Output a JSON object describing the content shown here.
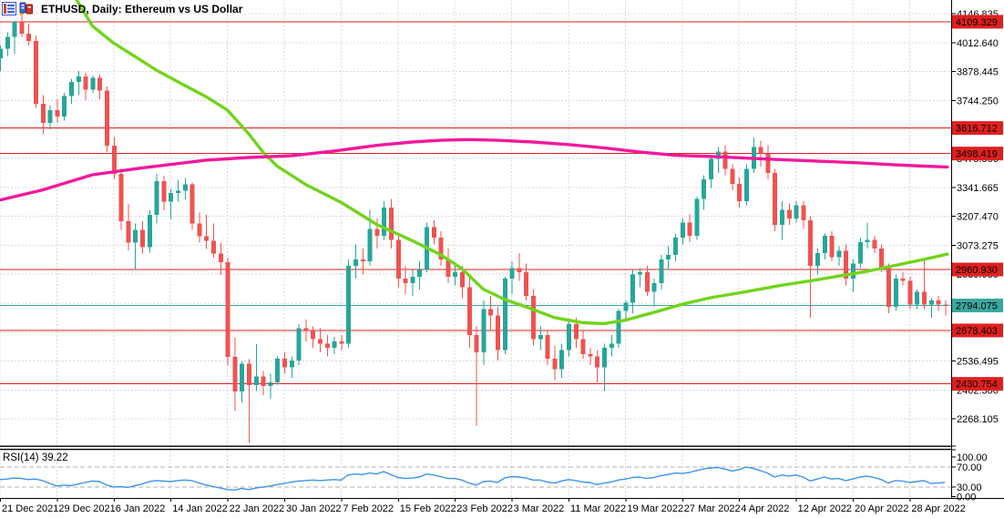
{
  "window": {
    "title": "ETHUSD, Daily: Ethereum vs US Dollar"
  },
  "indicator": {
    "text": "RSI(14) 39.22"
  },
  "chart_data": {
    "type": "candlestick",
    "symbol": "ETHUSD",
    "timeframe": "Daily",
    "description": "Ethereum vs US Dollar",
    "current_price": 2794.075,
    "colors": {
      "up": "#26a69a",
      "down": "#ef5350",
      "grid": "#d9d9d9",
      "rsi_line": "#3d94ee",
      "rsi_level_dash": "#b2b2b2",
      "level_red": "#e02020",
      "current_teal": "#3aa89e",
      "ma_fast_green": "#72d41c",
      "ma_slow_magenta": "#f2199c"
    },
    "x_axis": {
      "label_step_days": 8,
      "labels": [
        "21 Dec 2021",
        "29 Dec 2021",
        "6 Jan 2022",
        "14 Jan 2022",
        "22 Jan 2022",
        "30 Jan 2022",
        "7 Feb 2022",
        "15 Feb 2022",
        "23 Feb 2022",
        "3 Mar 2022",
        "11 Mar 2022",
        "19 Mar 2022",
        "27 Mar 2022",
        "4 Apr 2022",
        "12 Apr 2022",
        "20 Apr 2022",
        "28 Apr 2022"
      ]
    },
    "y_axis": {
      "ticks": [
        4146.835,
        4012.64,
        3878.445,
        3744.25,
        3610.055,
        3475.86,
        3341.665,
        3207.47,
        3073.275,
        2939.08,
        2804.885,
        2670.69,
        2536.495,
        2402.3,
        2268.105
      ]
    },
    "levels": [
      {
        "value": 4109.329,
        "color": "#e02020",
        "role": "horizontal-line"
      },
      {
        "value": 3616.712,
        "color": "#e02020",
        "role": "horizontal-line"
      },
      {
        "value": 3498.419,
        "color": "#e02020",
        "role": "horizontal-line"
      },
      {
        "value": 2960.93,
        "color": "#e02020",
        "role": "horizontal-line"
      },
      {
        "value": 2678.403,
        "color": "#e02020",
        "role": "horizontal-line"
      },
      {
        "value": 2430.754,
        "color": "#e02020",
        "role": "horizontal-line"
      },
      {
        "value": 2794.075,
        "color": "#3aa89e",
        "role": "current-price"
      }
    ],
    "ohlc": [
      [
        3940,
        4000,
        3880,
        3985
      ],
      [
        3985,
        4060,
        3950,
        4040
      ],
      [
        4040,
        4115,
        3960,
        4110
      ],
      [
        4110,
        4146.8,
        4040,
        4055
      ],
      [
        4055,
        4100,
        4000,
        4020
      ],
      [
        4020,
        4045,
        3710,
        3730
      ],
      [
        3730,
        3770,
        3590,
        3640
      ],
      [
        3640,
        3720,
        3610,
        3700
      ],
      [
        3700,
        3750,
        3640,
        3670
      ],
      [
        3670,
        3780,
        3650,
        3765
      ],
      [
        3765,
        3845,
        3730,
        3830
      ],
      [
        3830,
        3880,
        3770,
        3855
      ],
      [
        3855,
        3875,
        3745,
        3795
      ],
      [
        3795,
        3860,
        3780,
        3850
      ],
      [
        3850,
        3865,
        3750,
        3790
      ],
      [
        3790,
        3810,
        3505,
        3535
      ],
      [
        3535,
        3575,
        3380,
        3405
      ],
      [
        3405,
        3430,
        3145,
        3185
      ],
      [
        3185,
        3265,
        3050,
        3085
      ],
      [
        3085,
        3175,
        2958,
        3145
      ],
      [
        3145,
        3185,
        3035,
        3065
      ],
      [
        3065,
        3235,
        3040,
        3215
      ],
      [
        3215,
        3405,
        3175,
        3370
      ],
      [
        3370,
        3395,
        3235,
        3275
      ],
      [
        3275,
        3335,
        3195,
        3315
      ],
      [
        3315,
        3375,
        3275,
        3325
      ],
      [
        3325,
        3385,
        3285,
        3355
      ],
      [
        3355,
        3365,
        3145,
        3175
      ],
      [
        3175,
        3225,
        3085,
        3115
      ],
      [
        3115,
        3215,
        3055,
        3095
      ],
      [
        3095,
        3175,
        3015,
        3035
      ],
      [
        3035,
        3085,
        2935,
        2995
      ],
      [
        2995,
        3015,
        2515,
        2555
      ],
      [
        2555,
        2645,
        2305,
        2395
      ],
      [
        2395,
        2535,
        2345,
        2525
      ],
      [
        2525,
        2545,
        2158,
        2425
      ],
      [
        2425,
        2615,
        2398,
        2465
      ],
      [
        2465,
        2490,
        2378,
        2420
      ],
      [
        2420,
        2478,
        2362,
        2438
      ],
      [
        2438,
        2558,
        2428,
        2548
      ],
      [
        2548,
        2578,
        2478,
        2508
      ],
      [
        2508,
        2558,
        2458,
        2538
      ],
      [
        2538,
        2708,
        2518,
        2688
      ],
      [
        2688,
        2728,
        2628,
        2678
      ],
      [
        2678,
        2698,
        2598,
        2638
      ],
      [
        2638,
        2688,
        2578,
        2618
      ],
      [
        2618,
        2658,
        2558,
        2598
      ],
      [
        2598,
        2648,
        2568,
        2628
      ],
      [
        2628,
        2658,
        2588,
        2618
      ],
      [
        2618,
        3008,
        2598,
        2978
      ],
      [
        2978,
        3078,
        2918,
        3008
      ],
      [
        3008,
        3058,
        2938,
        2998
      ],
      [
        2998,
        3238,
        2978,
        3148
      ],
      [
        3148,
        3198,
        3058,
        3118
      ],
      [
        3118,
        3278,
        3098,
        3248
      ],
      [
        3248,
        3288,
        3058,
        3098
      ],
      [
        3098,
        3118,
        2878,
        2918
      ],
      [
        2918,
        2978,
        2848,
        2898
      ],
      [
        2898,
        2958,
        2838,
        2928
      ],
      [
        2928,
        2998,
        2868,
        2958
      ],
      [
        2958,
        3178,
        2948,
        3158
      ],
      [
        3158,
        3188,
        3078,
        3108
      ],
      [
        3108,
        3138,
        2978,
        3008
      ],
      [
        3008,
        3058,
        2898,
        2928
      ],
      [
        2928,
        2988,
        2888,
        2948
      ],
      [
        2948,
        2978,
        2828,
        2878
      ],
      [
        2878,
        2938,
        2598,
        2658
      ],
      [
        2658,
        2698,
        2238,
        2578
      ],
      [
        2578,
        2818,
        2518,
        2778
      ],
      [
        2778,
        2838,
        2678,
        2748
      ],
      [
        2748,
        2788,
        2538,
        2588
      ],
      [
        2588,
        2928,
        2568,
        2918
      ],
      [
        2918,
        2998,
        2848,
        2968
      ],
      [
        2968,
        3038,
        2908,
        2948
      ],
      [
        2948,
        2988,
        2818,
        2838
      ],
      [
        2838,
        2868,
        2608,
        2638
      ],
      [
        2638,
        2698,
        2588,
        2658
      ],
      [
        2658,
        2678,
        2518,
        2548
      ],
      [
        2548,
        2608,
        2448,
        2498
      ],
      [
        2498,
        2618,
        2458,
        2588
      ],
      [
        2588,
        2728,
        2558,
        2708
      ],
      [
        2708,
        2738,
        2598,
        2638
      ],
      [
        2638,
        2678,
        2548,
        2568
      ],
      [
        2568,
        2598,
        2518,
        2558
      ],
      [
        2558,
        2588,
        2438,
        2508
      ],
      [
        2508,
        2618,
        2398,
        2598
      ],
      [
        2598,
        2658,
        2558,
        2618
      ],
      [
        2618,
        2778,
        2598,
        2768
      ],
      [
        2768,
        2818,
        2728,
        2808
      ],
      [
        2808,
        2958,
        2758,
        2938
      ],
      [
        2938,
        2968,
        2878,
        2948
      ],
      [
        2948,
        2978,
        2838,
        2858
      ],
      [
        2858,
        2918,
        2788,
        2898
      ],
      [
        2898,
        3028,
        2868,
        3008
      ],
      [
        3008,
        3068,
        2958,
        3028
      ],
      [
        3028,
        3128,
        2998,
        3108
      ],
      [
        3108,
        3198,
        3078,
        3178
      ],
      [
        3178,
        3218,
        3088,
        3118
      ],
      [
        3118,
        3298,
        3098,
        3288
      ],
      [
        3288,
        3398,
        3238,
        3378
      ],
      [
        3378,
        3488,
        3338,
        3473
      ],
      [
        3473,
        3528,
        3408,
        3508
      ],
      [
        3508,
        3538,
        3398,
        3428
      ],
      [
        3428,
        3448,
        3328,
        3358
      ],
      [
        3358,
        3388,
        3248,
        3278
      ],
      [
        3278,
        3448,
        3258,
        3428
      ],
      [
        3428,
        3572,
        3408,
        3528
      ],
      [
        3528,
        3558,
        3438,
        3498
      ],
      [
        3498,
        3538,
        3378,
        3408
      ],
      [
        3408,
        3428,
        3138,
        3168
      ],
      [
        3168,
        3278,
        3098,
        3238
      ],
      [
        3238,
        3268,
        3168,
        3198
      ],
      [
        3198,
        3278,
        3178,
        3258
      ],
      [
        3258,
        3278,
        3148,
        3188
      ],
      [
        3188,
        3208,
        2738,
        2978
      ],
      [
        2978,
        3058,
        2938,
        3038
      ],
      [
        3038,
        3128,
        3008,
        3118
      ],
      [
        3118,
        3138,
        2998,
        3018
      ],
      [
        3018,
        3068,
        2978,
        3048
      ],
      [
        3048,
        3078,
        2888,
        2918
      ],
      [
        2918,
        3008,
        2858,
        2988
      ],
      [
        2988,
        3108,
        2968,
        3088
      ],
      [
        3088,
        3178,
        3058,
        3098
      ],
      [
        3098,
        3118,
        3038,
        3058
      ],
      [
        3058,
        3078,
        2948,
        2968
      ],
      [
        2968,
        2988,
        2758,
        2788
      ],
      [
        2788,
        2938,
        2768,
        2918
      ],
      [
        2918,
        2948,
        2888,
        2908
      ],
      [
        2908,
        2928,
        2778,
        2798
      ],
      [
        2798,
        2868,
        2778,
        2858
      ],
      [
        2858,
        3015,
        2778,
        2798
      ],
      [
        2798,
        2828,
        2738,
        2818
      ],
      [
        2818,
        2838,
        2768,
        2798
      ],
      [
        2798,
        2818,
        2748,
        2794.075
      ]
    ],
    "moving_averages": [
      {
        "name": "fast-ma",
        "color": "#72d41c",
        "points": [
          [
            9.5,
            4280
          ],
          [
            13,
            4090
          ],
          [
            16,
            4010
          ],
          [
            19,
            3948
          ],
          [
            22,
            3885
          ],
          [
            26,
            3814
          ],
          [
            29,
            3762
          ],
          [
            32,
            3700
          ],
          [
            35,
            3590
          ],
          [
            37,
            3505
          ],
          [
            39,
            3440
          ],
          [
            43,
            3355
          ],
          [
            48,
            3272
          ],
          [
            53,
            3170
          ],
          [
            58,
            3095
          ],
          [
            62,
            3030
          ],
          [
            65,
            2965
          ],
          [
            68,
            2870
          ],
          [
            71,
            2822
          ],
          [
            74,
            2788
          ],
          [
            78,
            2738
          ],
          [
            82,
            2714
          ],
          [
            85,
            2710
          ],
          [
            88,
            2726
          ],
          [
            92,
            2762
          ],
          [
            96,
            2800
          ],
          [
            100,
            2830
          ],
          [
            105,
            2858
          ],
          [
            110,
            2888
          ],
          [
            114,
            2908
          ],
          [
            118,
            2930
          ],
          [
            122,
            2952
          ],
          [
            126,
            2980
          ],
          [
            130,
            3008
          ],
          [
            133.3,
            3032
          ]
        ]
      },
      {
        "name": "slow-ma",
        "color": "#f2199c",
        "points": [
          [
            0,
            3283
          ],
          [
            6,
            3330
          ],
          [
            13,
            3400
          ],
          [
            20,
            3432
          ],
          [
            29,
            3468
          ],
          [
            35,
            3480
          ],
          [
            41,
            3488
          ],
          [
            47,
            3510
          ],
          [
            53,
            3536
          ],
          [
            58,
            3552
          ],
          [
            62,
            3560
          ],
          [
            66,
            3563
          ],
          [
            70,
            3560
          ],
          [
            75,
            3552
          ],
          [
            80,
            3540
          ],
          [
            85,
            3525
          ],
          [
            90,
            3506
          ],
          [
            95,
            3490
          ],
          [
            100,
            3485
          ],
          [
            105,
            3477
          ],
          [
            110,
            3470
          ],
          [
            116,
            3462
          ],
          [
            121,
            3455
          ],
          [
            126,
            3446
          ],
          [
            130,
            3440
          ],
          [
            133.3,
            3436
          ]
        ]
      }
    ],
    "rsi": {
      "label": "RSI(14)",
      "value": 39.22,
      "axis": [
        {
          "value": 100,
          "label": "100.00"
        },
        {
          "value": 70,
          "label": "70.00"
        },
        {
          "value": 30,
          "label": "30.00"
        },
        {
          "value": 0,
          "label": "0.00"
        }
      ],
      "dashed_levels": [
        70,
        30
      ],
      "series": [
        45,
        46,
        48,
        47,
        45,
        46,
        43,
        37,
        32,
        34,
        33,
        36,
        39,
        42,
        41,
        34,
        30,
        31,
        29,
        33,
        36,
        41,
        43,
        42,
        41,
        43,
        44,
        43,
        38,
        34,
        31,
        28,
        25,
        24,
        27,
        25,
        28,
        30,
        32,
        35,
        37,
        40,
        42,
        43,
        44,
        43,
        44,
        45,
        44,
        54,
        56,
        55,
        58,
        56,
        61,
        55,
        49,
        47,
        48,
        50,
        56,
        54,
        51,
        47,
        47,
        44,
        38,
        34,
        41,
        42,
        39,
        48,
        51,
        50,
        48,
        44,
        44,
        40,
        38,
        42,
        45,
        43,
        40,
        39,
        35,
        38,
        40,
        44,
        46,
        49,
        50,
        47,
        49,
        53,
        55,
        58,
        57,
        59,
        63,
        66,
        68,
        69,
        66,
        62,
        65,
        70,
        67,
        63,
        58,
        50,
        54,
        52,
        54,
        50,
        42,
        46,
        50,
        46,
        47,
        43,
        46,
        50,
        52,
        49,
        45,
        38,
        43,
        42,
        39,
        41,
        43,
        37,
        38,
        39.22
      ]
    }
  }
}
